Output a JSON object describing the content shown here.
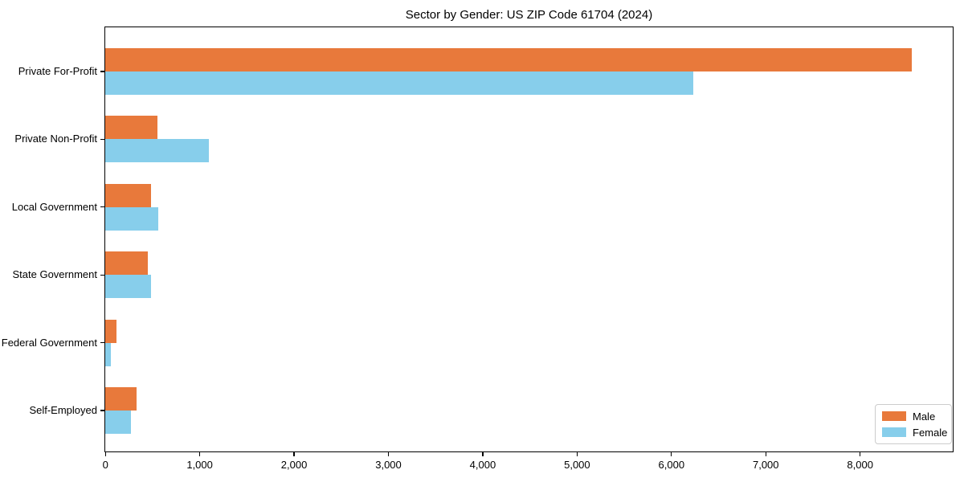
{
  "chart_data": {
    "type": "bar",
    "orientation": "horizontal",
    "title": "Sector by Gender: US ZIP Code 61704 (2024)",
    "xlabel": "",
    "ylabel": "",
    "categories": [
      "Private For-Profit",
      "Private Non-Profit",
      "Local Government",
      "State Government",
      "Federal Government",
      "Self-Employed"
    ],
    "series": [
      {
        "name": "Male",
        "color": "#E8793B",
        "values": [
          8550,
          550,
          480,
          450,
          120,
          330
        ]
      },
      {
        "name": "Female",
        "color": "#87CEEB",
        "values": [
          6230,
          1100,
          560,
          480,
          60,
          270
        ]
      }
    ],
    "xlim": [
      0,
      8980
    ],
    "x_ticks": [
      0,
      1000,
      2000,
      3000,
      4000,
      5000,
      6000,
      7000,
      8000
    ],
    "x_tick_labels": [
      "0",
      "1,000",
      "2,000",
      "3,000",
      "4,000",
      "5,000",
      "6,000",
      "7,000",
      "8,000"
    ],
    "grid": false,
    "legend": {
      "position": "lower right",
      "border_color": "#CCCCCC",
      "entries": [
        "Male",
        "Female"
      ]
    }
  }
}
